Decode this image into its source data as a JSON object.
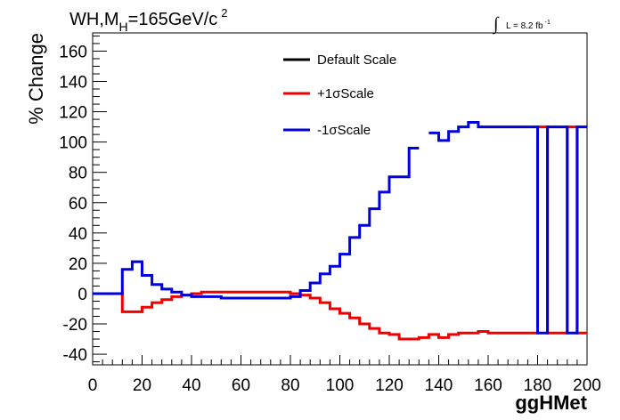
{
  "title": {
    "main": "WH,M",
    "sub": "H",
    "rest": "=165GeV/c",
    "sup": "2"
  },
  "lumi": {
    "integral": "∫",
    "label": "L = 8.2 fb",
    "sup": "-1"
  },
  "chart_data": {
    "type": "line",
    "xlabel": "ggHMet",
    "ylabel": "% Change",
    "xlim": [
      0,
      200
    ],
    "ylim": [
      -47,
      172
    ],
    "xticks": [
      0,
      20,
      40,
      60,
      80,
      100,
      120,
      140,
      160,
      180,
      200
    ],
    "yticks": [
      -40,
      -20,
      0,
      20,
      40,
      60,
      80,
      100,
      120,
      140,
      160
    ],
    "grid": false,
    "legend_position": "top-center",
    "series": [
      {
        "name": "Default Scale",
        "color": "#000000",
        "style": "step",
        "edges": [],
        "values": []
      },
      {
        "name": "+1σScale",
        "color": "#ee0000",
        "style": "step",
        "edges": [
          0,
          12,
          16,
          20,
          24,
          28,
          32,
          36,
          40,
          44,
          48,
          52,
          56,
          60,
          64,
          68,
          72,
          76,
          80,
          84,
          88,
          92,
          96,
          100,
          104,
          108,
          112,
          116,
          120,
          124,
          128,
          132,
          136,
          140,
          144,
          148,
          152,
          156,
          160,
          180,
          184,
          192,
          196,
          200
        ],
        "values": [
          0,
          -12,
          -12,
          -9,
          -6,
          -4,
          -2,
          -1,
          0,
          1,
          1,
          1,
          1,
          1,
          1,
          1,
          1,
          1,
          0,
          -1,
          -3,
          -6,
          -10,
          -13,
          -16,
          -20,
          -23,
          -26,
          -27,
          -30,
          -30,
          -29,
          -27,
          -29,
          -27,
          -26,
          -26,
          -25,
          -26,
          110,
          -26,
          110,
          -26
        ]
      },
      {
        "name": "-1σScale",
        "color": "#0000dd",
        "style": "step",
        "edges": [
          0,
          12,
          16,
          20,
          24,
          28,
          32,
          36,
          40,
          44,
          48,
          52,
          56,
          60,
          64,
          68,
          72,
          76,
          80,
          84,
          88,
          92,
          96,
          100,
          104,
          108,
          112,
          116,
          120,
          124,
          128,
          132,
          136,
          140,
          144,
          148,
          152,
          156,
          160,
          180,
          184,
          192,
          196,
          200
        ],
        "values": [
          0,
          16,
          21,
          12,
          6,
          3,
          1,
          -1,
          -2,
          -2,
          -2,
          -3,
          -3,
          -3,
          -3,
          -3,
          -3,
          -3,
          -2,
          2,
          7,
          13,
          18,
          26,
          37,
          45,
          56,
          67,
          77,
          77,
          96,
          null,
          106,
          101,
          107,
          110,
          113,
          110,
          110,
          -26,
          110,
          -26,
          110
        ]
      }
    ]
  }
}
